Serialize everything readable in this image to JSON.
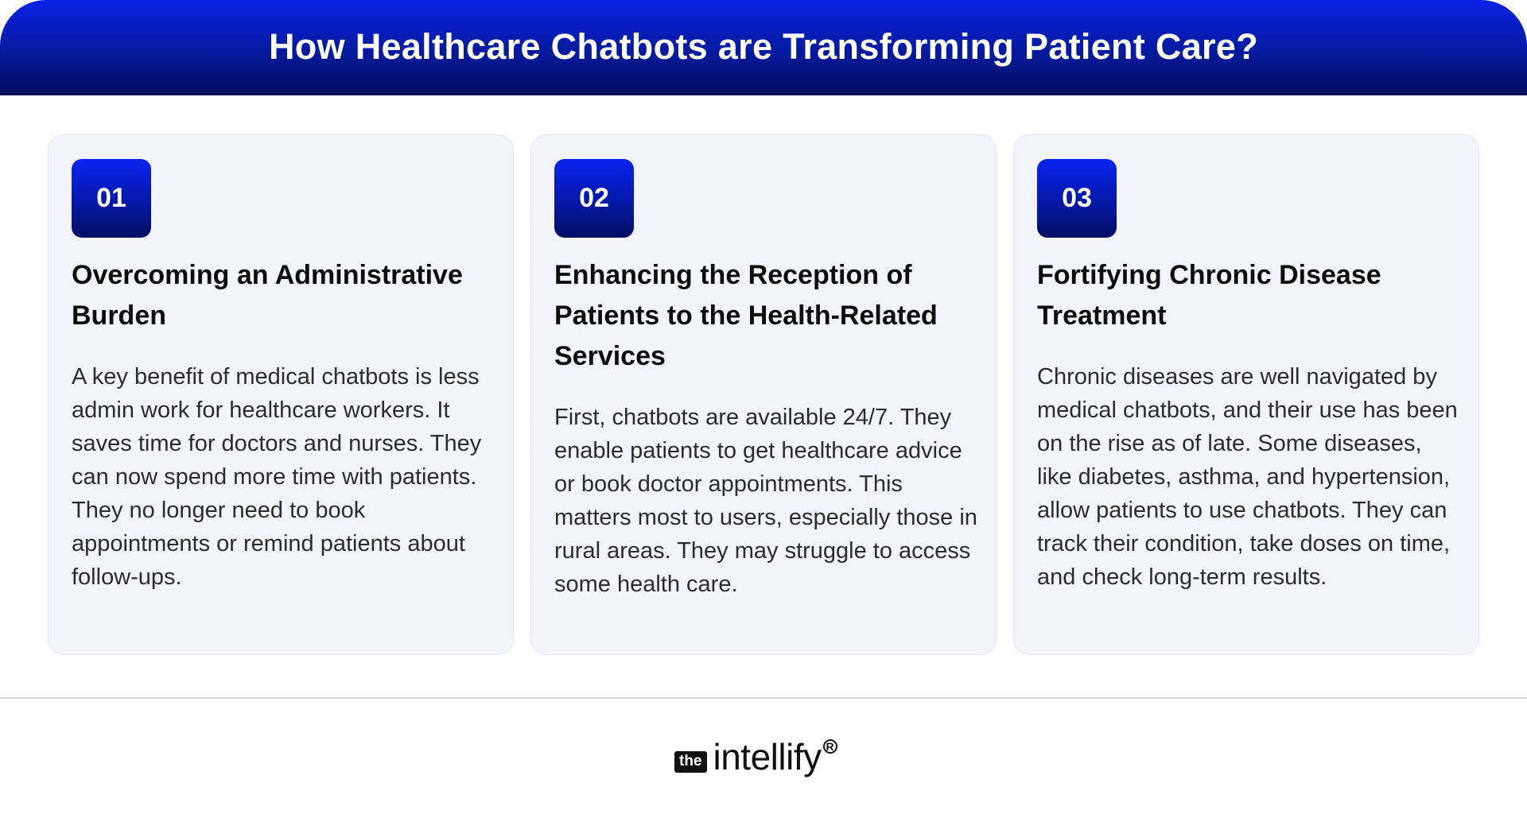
{
  "header": {
    "title": "How Healthcare Chatbots are Transforming Patient Care?"
  },
  "cards": [
    {
      "number": "01",
      "title": "Overcoming an Administrative Burden",
      "body": "A key benefit of medical chatbots is less admin work for healthcare workers. It saves time for doctors and nurses. They can now spend more time with patients. They no longer need to book appointments or remind patients about follow-ups."
    },
    {
      "number": "02",
      "title": "Enhancing the Reception of Patients to the Health-Related Services",
      "body": "First, chatbots are available 24/7. They enable patients to get healthcare advice or book doctor appointments. This matters most to users, especially those in rural areas. They may struggle to access some health care."
    },
    {
      "number": "03",
      "title": "Fortifying Chronic Disease Treatment",
      "body": "Chronic diseases are well navigated by medical chatbots, and their use has been on the rise as of late. Some diseases, like diabetes, asthma, and hypertension, allow patients to use chatbots. They can track their condition, take doses on time, and check long-term results."
    }
  ],
  "footer": {
    "logo_prefix": "the",
    "logo_word": "intellify",
    "logo_mark": "R"
  },
  "colors": {
    "brand_blue": "#0a22e6",
    "brand_navy": "#040e5a",
    "card_bg": "#f3f4fb"
  }
}
